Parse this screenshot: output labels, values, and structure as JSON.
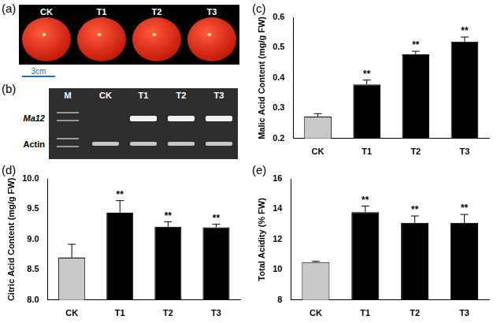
{
  "photo": {
    "label": "(a)",
    "lanes": [
      "CK",
      "T1",
      "T2",
      "T3"
    ],
    "scale_bar": "3cm"
  },
  "gel": {
    "label": "(b)",
    "lanes": [
      "M",
      "CK",
      "T1",
      "T2",
      "T3"
    ],
    "rows": [
      {
        "label": "Ma12",
        "present": [
          true,
          false,
          true,
          true,
          true
        ]
      },
      {
        "label": "Actin",
        "present": [
          true,
          true,
          true,
          true,
          true
        ]
      }
    ]
  },
  "chart_data": [
    {
      "type": "bar",
      "title": "(c)",
      "y_label": "Malic Acid Content (mg/g FW)",
      "categories": [
        "CK",
        "T1",
        "T2",
        "T3"
      ],
      "values": [
        0.272,
        0.378,
        0.478,
        0.52
      ],
      "errors": [
        0.01,
        0.015,
        0.01,
        0.015
      ],
      "annotations": [
        null,
        "**",
        "**",
        "**"
      ],
      "colors": [
        "#c8c8c8",
        "#000000",
        "#000000",
        "#000000"
      ],
      "ylim": [
        0.2,
        0.6
      ],
      "yticks": [
        0.2,
        0.3,
        0.4,
        0.5,
        0.6
      ],
      "grid": false
    },
    {
      "type": "bar",
      "title": "(d)",
      "y_label": "Citric Acid Content (mg/g FW)",
      "categories": [
        "CK",
        "T1",
        "T2",
        "T3"
      ],
      "values": [
        8.7,
        9.44,
        9.21,
        9.2
      ],
      "errors": [
        0.22,
        0.2,
        0.08,
        0.05
      ],
      "annotations": [
        null,
        "**",
        "**",
        "**"
      ],
      "colors": [
        "#c8c8c8",
        "#000000",
        "#000000",
        "#000000"
      ],
      "ylim": [
        8,
        10
      ],
      "yticks": [
        {
          "value": 8,
          "label": "8.0"
        },
        {
          "value": 8.5,
          "label": "8.5"
        },
        {
          "value": 9,
          "label": "9.0"
        },
        {
          "value": 9.5,
          "label": "9.5"
        },
        {
          "value": 10,
          "label": "10.0"
        }
      ],
      "grid": false
    },
    {
      "type": "bar",
      "title": "(e)",
      "y_label": "Total Acidity (% FW)",
      "categories": [
        "CK",
        "T1",
        "T2",
        "T3"
      ],
      "values": [
        10.5,
        13.8,
        13.1,
        13.1
      ],
      "errors": [
        0.05,
        0.4,
        0.45,
        0.55
      ],
      "annotations": [
        null,
        "**",
        "**",
        "**"
      ],
      "colors": [
        "#c8c8c8",
        "#000000",
        "#000000",
        "#000000"
      ],
      "ylim": [
        8,
        16
      ],
      "yticks": [
        8,
        10,
        12,
        14,
        16
      ],
      "grid": false
    }
  ]
}
